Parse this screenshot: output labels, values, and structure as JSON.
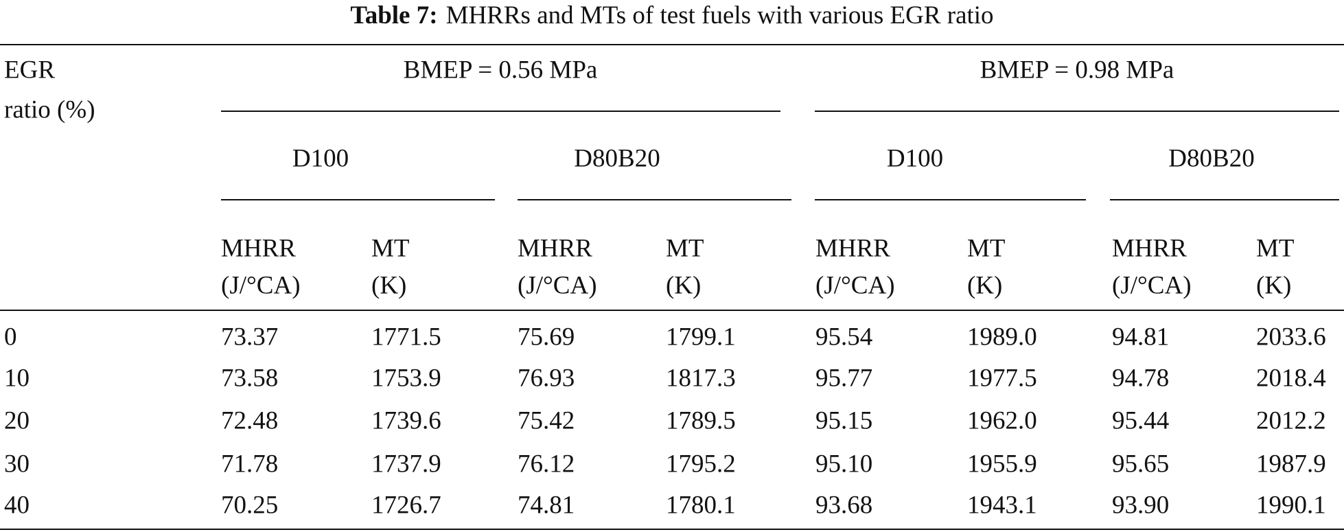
{
  "caption": {
    "label": "Table 7:",
    "text": "MHRRs and MTs of test fuels with various EGR ratio"
  },
  "header": {
    "row_label": [
      "EGR",
      "ratio (%)"
    ],
    "groups": [
      "BMEP = 0.56 MPa",
      "BMEP = 0.98 MPa"
    ],
    "fuels": [
      "D100",
      "D80B20",
      "D100",
      "D80B20"
    ],
    "columns": [
      [
        "MHRR",
        "(J/°CA)"
      ],
      [
        "MT",
        "(K)"
      ],
      [
        "MHRR",
        "(J/°CA)"
      ],
      [
        "MT",
        "(K)"
      ],
      [
        "MHRR",
        "(J/°CA)"
      ],
      [
        "MT",
        "(K)"
      ],
      [
        "MHRR",
        "(J/°CA)"
      ],
      [
        "MT",
        "(K)"
      ]
    ]
  },
  "table": {
    "rows": [
      [
        "0",
        "73.37",
        "1771.5",
        "75.69",
        "1799.1",
        "95.54",
        "1989.0",
        "94.81",
        "2033.6"
      ],
      [
        "10",
        "73.58",
        "1753.9",
        "76.93",
        "1817.3",
        "95.77",
        "1977.5",
        "94.78",
        "2018.4"
      ],
      [
        "20",
        "72.48",
        "1739.6",
        "75.42",
        "1789.5",
        "95.15",
        "1962.0",
        "95.44",
        "2012.2"
      ],
      [
        "30",
        "71.78",
        "1737.9",
        "76.12",
        "1795.2",
        "95.10",
        "1955.9",
        "95.65",
        "1987.9"
      ],
      [
        "40",
        "70.25",
        "1726.7",
        "74.81",
        "1780.1",
        "93.68",
        "1943.1",
        "93.90",
        "1990.1"
      ]
    ]
  }
}
